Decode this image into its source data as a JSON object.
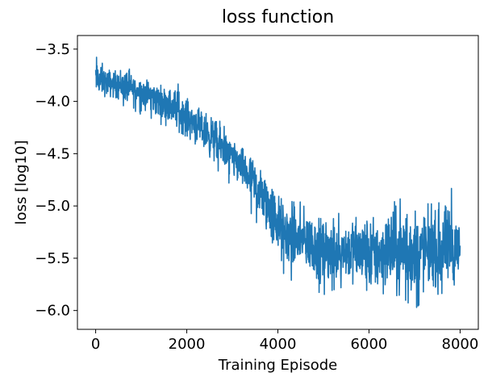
{
  "chart_data": {
    "type": "line",
    "title": "loss function",
    "xlabel": "Training Episode",
    "ylabel": "loss [log10]",
    "xlim": [
      -400,
      8400
    ],
    "ylim": [
      -6.18,
      -3.37
    ],
    "xticks": [
      0,
      2000,
      4000,
      6000,
      8000
    ],
    "yticks": [
      -6.0,
      -5.5,
      -5.0,
      -4.5,
      -4.0,
      -3.5
    ],
    "xtick_labels": [
      "0",
      "2000",
      "4000",
      "6000",
      "8000"
    ],
    "ytick_labels": [
      "−6.0",
      "−5.5",
      "−5.0",
      "−4.5",
      "−4.0",
      "−3.5"
    ],
    "grid": false,
    "legend": "none",
    "color": "#1f77b4",
    "series": [
      {
        "x": [
          0,
          200,
          400,
          600,
          800,
          1000,
          1200,
          1400,
          1600,
          1800,
          2000,
          2200,
          2400,
          2600,
          2800,
          3000,
          3200,
          3400,
          3600,
          3800,
          4000,
          4200,
          4400,
          4600,
          4800,
          5000,
          5200,
          5400,
          5600,
          5800,
          6000,
          6200,
          6400,
          6600,
          6800,
          7000,
          7200,
          7400,
          7600,
          7800,
          8000
        ],
        "mean": [
          -3.8,
          -3.82,
          -3.83,
          -3.86,
          -3.88,
          -3.91,
          -3.93,
          -3.98,
          -4.02,
          -4.08,
          -4.14,
          -4.2,
          -4.28,
          -4.36,
          -4.44,
          -4.52,
          -4.62,
          -4.72,
          -4.86,
          -5.0,
          -5.15,
          -5.25,
          -5.3,
          -5.33,
          -5.36,
          -5.4,
          -5.4,
          -5.42,
          -5.43,
          -5.44,
          -5.45,
          -5.45,
          -5.45,
          -5.45,
          -5.45,
          -5.45,
          -5.45,
          -5.45,
          -5.45,
          -5.45,
          -5.45
        ],
        "min": [
          -3.98,
          -4.0,
          -4.02,
          -4.06,
          -4.1,
          -4.15,
          -4.18,
          -4.25,
          -4.3,
          -4.35,
          -4.42,
          -4.5,
          -4.58,
          -4.65,
          -4.75,
          -4.85,
          -4.95,
          -5.1,
          -5.25,
          -5.45,
          -5.65,
          -5.72,
          -5.8,
          -5.75,
          -5.85,
          -5.9,
          -5.85,
          -5.82,
          -5.85,
          -5.95,
          -6.02,
          -5.98,
          -5.93,
          -5.9,
          -5.95,
          -6.05,
          -5.95,
          -5.9,
          -5.88,
          -5.85,
          -5.68
        ],
        "max": [
          -3.45,
          -3.62,
          -3.66,
          -3.6,
          -3.7,
          -3.68,
          -3.75,
          -3.8,
          -3.82,
          -3.8,
          -3.92,
          -3.98,
          -4.1,
          -4.08,
          -4.2,
          -4.35,
          -4.38,
          -4.45,
          -4.55,
          -4.62,
          -4.75,
          -4.95,
          -4.9,
          -4.95,
          -5.0,
          -5.05,
          -5.1,
          -5.0,
          -5.02,
          -4.95,
          -4.98,
          -5.0,
          -4.78,
          -4.85,
          -4.65,
          -5.02,
          -4.8,
          -4.95,
          -4.9,
          -4.75,
          -5.02
        ]
      }
    ]
  }
}
